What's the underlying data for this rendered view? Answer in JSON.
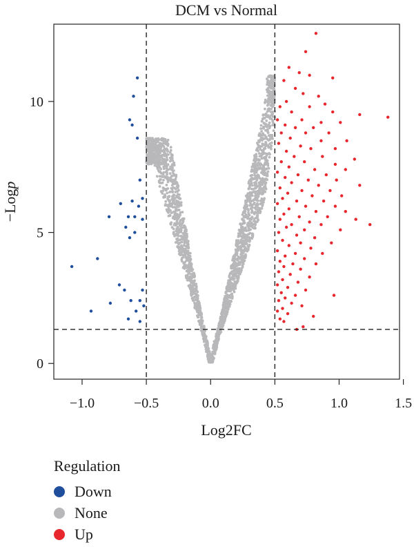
{
  "chart_data": {
    "type": "scatter",
    "title": "DCM vs Normal",
    "xlabel": "Log2FC",
    "ylabel": "−Logp",
    "xlim": [
      -1.22,
      1.47
    ],
    "ylim": [
      -0.6,
      12.95
    ],
    "xticks": [
      -1.0,
      -0.5,
      0.0,
      0.5,
      1.0,
      1.5
    ],
    "xtick_labels": [
      "−1.0",
      "−0.5",
      "0.0",
      "0.5",
      "1.0",
      "1.5"
    ],
    "yticks": [
      0,
      5,
      10
    ],
    "ytick_labels": [
      "0",
      "5",
      "10"
    ],
    "thresholds": {
      "log2fc": [
        -0.5,
        0.5
      ],
      "neg_log_p": 1.3
    },
    "legend": {
      "title": "Regulation",
      "placement": "bottom-left",
      "entries": [
        {
          "name": "Down",
          "color": "#1f4e9c"
        },
        {
          "name": "None",
          "color": "#b8b8bb"
        },
        {
          "name": "Up",
          "color": "#e8262d"
        }
      ]
    },
    "series": [
      {
        "name": "Down",
        "color": "#1f4e9c",
        "points": [
          [
            -0.57,
            10.9
          ],
          [
            -0.6,
            10.2
          ],
          [
            -0.63,
            9.3
          ],
          [
            -0.61,
            9.1
          ],
          [
            -0.57,
            8.6
          ],
          [
            -0.55,
            7.0
          ],
          [
            -0.53,
            6.3
          ],
          [
            -0.61,
            6.2
          ],
          [
            -0.7,
            6.1
          ],
          [
            -0.56,
            6.0
          ],
          [
            -0.64,
            5.6
          ],
          [
            -0.59,
            5.6
          ],
          [
            -0.79,
            5.6
          ],
          [
            -0.53,
            5.5
          ],
          [
            -0.66,
            5.2
          ],
          [
            -0.59,
            5.0
          ],
          [
            -0.63,
            4.8
          ],
          [
            -0.88,
            4.0
          ],
          [
            -1.08,
            3.7
          ],
          [
            -0.71,
            3.0
          ],
          [
            -0.67,
            2.8
          ],
          [
            -0.53,
            2.8
          ],
          [
            -0.55,
            2.4
          ],
          [
            -0.62,
            2.4
          ],
          [
            -0.78,
            2.3
          ],
          [
            -0.52,
            2.2
          ],
          [
            -0.58,
            2.0
          ],
          [
            -0.93,
            2.0
          ],
          [
            -0.64,
            1.7
          ],
          [
            -0.55,
            1.6
          ]
        ]
      },
      {
        "name": "Up",
        "color": "#e8262d",
        "points": [
          [
            0.82,
            12.6
          ],
          [
            0.74,
            11.9
          ],
          [
            0.61,
            11.3
          ],
          [
            0.69,
            11.1
          ],
          [
            0.77,
            11.0
          ],
          [
            0.95,
            10.9
          ],
          [
            0.57,
            10.8
          ],
          [
            0.66,
            10.5
          ],
          [
            0.72,
            10.3
          ],
          [
            0.84,
            10.2
          ],
          [
            0.59,
            10.0
          ],
          [
            0.89,
            9.9
          ],
          [
            0.54,
            9.8
          ],
          [
            0.77,
            9.8
          ],
          [
            0.63,
            9.6
          ],
          [
            0.95,
            9.6
          ],
          [
            1.16,
            9.5
          ],
          [
            1.38,
            9.4
          ],
          [
            0.52,
            9.3
          ],
          [
            0.71,
            9.3
          ],
          [
            0.86,
            9.2
          ],
          [
            1.01,
            9.2
          ],
          [
            0.58,
            9.1
          ],
          [
            0.66,
            9.0
          ],
          [
            0.8,
            9.0
          ],
          [
            0.55,
            8.8
          ],
          [
            0.74,
            8.8
          ],
          [
            0.92,
            8.8
          ],
          [
            0.62,
            8.6
          ],
          [
            0.86,
            8.5
          ],
          [
            1.06,
            8.5
          ],
          [
            0.53,
            8.4
          ],
          [
            0.7,
            8.3
          ],
          [
            0.78,
            8.2
          ],
          [
            0.97,
            8.2
          ],
          [
            0.59,
            8.1
          ],
          [
            0.65,
            7.9
          ],
          [
            0.87,
            7.9
          ],
          [
            1.12,
            7.8
          ],
          [
            0.55,
            7.7
          ],
          [
            0.73,
            7.7
          ],
          [
            0.97,
            7.6
          ],
          [
            0.61,
            7.5
          ],
          [
            0.81,
            7.4
          ],
          [
            1.05,
            7.4
          ],
          [
            0.52,
            7.3
          ],
          [
            0.68,
            7.2
          ],
          [
            0.9,
            7.2
          ],
          [
            0.58,
            7.1
          ],
          [
            0.76,
            7.0
          ],
          [
            0.98,
            7.0
          ],
          [
            0.63,
            6.9
          ],
          [
            0.84,
            6.8
          ],
          [
            1.16,
            6.8
          ],
          [
            0.54,
            6.7
          ],
          [
            0.71,
            6.6
          ],
          [
            0.93,
            6.6
          ],
          [
            0.6,
            6.5
          ],
          [
            0.79,
            6.4
          ],
          [
            1.02,
            6.4
          ],
          [
            0.56,
            6.3
          ],
          [
            0.67,
            6.2
          ],
          [
            0.88,
            6.2
          ],
          [
            0.52,
            6.1
          ],
          [
            0.74,
            6.0
          ],
          [
            0.97,
            6.0
          ],
          [
            0.61,
            5.9
          ],
          [
            0.82,
            5.8
          ],
          [
            1.05,
            5.8
          ],
          [
            0.57,
            5.7
          ],
          [
            0.69,
            5.6
          ],
          [
            0.91,
            5.6
          ],
          [
            1.13,
            5.5
          ],
          [
            0.54,
            5.5
          ],
          [
            0.77,
            5.4
          ],
          [
            0.63,
            5.3
          ],
          [
            0.86,
            5.3
          ],
          [
            1.24,
            5.3
          ],
          [
            0.59,
            5.2
          ],
          [
            0.73,
            5.1
          ],
          [
            1.01,
            5.1
          ],
          [
            0.53,
            5.0
          ],
          [
            0.67,
            4.9
          ],
          [
            0.81,
            4.8
          ],
          [
            0.56,
            4.7
          ],
          [
            0.7,
            4.6
          ],
          [
            0.94,
            4.6
          ],
          [
            0.61,
            4.5
          ],
          [
            0.78,
            4.4
          ],
          [
            0.52,
            4.3
          ],
          [
            0.66,
            4.2
          ],
          [
            0.87,
            4.2
          ],
          [
            0.58,
            4.1
          ],
          [
            0.73,
            4.0
          ],
          [
            0.54,
            3.9
          ],
          [
            0.64,
            3.8
          ],
          [
            0.82,
            3.8
          ],
          [
            0.57,
            3.7
          ],
          [
            0.7,
            3.6
          ],
          [
            0.53,
            3.5
          ],
          [
            0.62,
            3.4
          ],
          [
            0.77,
            3.3
          ],
          [
            0.56,
            3.2
          ],
          [
            0.68,
            3.1
          ],
          [
            0.52,
            3.0
          ],
          [
            0.6,
            2.9
          ],
          [
            0.74,
            2.8
          ],
          [
            0.55,
            2.7
          ],
          [
            0.66,
            2.6
          ],
          [
            0.96,
            2.6
          ],
          [
            0.58,
            2.5
          ],
          [
            0.53,
            2.4
          ],
          [
            0.63,
            2.3
          ],
          [
            0.71,
            2.2
          ],
          [
            0.56,
            2.1
          ],
          [
            0.52,
            2.0
          ],
          [
            0.6,
            1.9
          ],
          [
            0.8,
            1.8
          ],
          [
            0.54,
            1.7
          ],
          [
            0.57,
            1.6
          ],
          [
            0.72,
            1.4
          ],
          [
            0.67,
            1.3
          ]
        ]
      }
    ],
    "none_cloud": {
      "description_of_shape": "V-shaped cloud of non-significant genes centred at Log2FC 0",
      "x_range": [
        -0.5,
        0.5
      ],
      "y_max": 11.0
    }
  }
}
